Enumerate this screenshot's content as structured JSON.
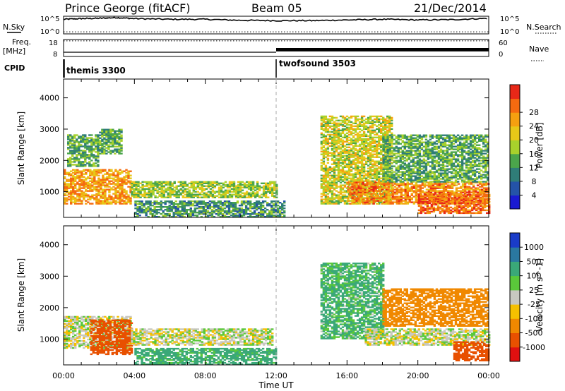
{
  "header": {
    "station": "Prince George (fitACF)",
    "beam": "Beam 05",
    "date": "21/Dec/2014"
  },
  "panel_labels": {
    "nsky": "N.Sky",
    "nsearch": "N.Search",
    "freq_line1": "Freq.",
    "freq_line2": "[MHz]",
    "nave": "Nave",
    "cpid": "CPID"
  },
  "noise_axis": {
    "left_top": "10^5",
    "left_bottom": "10^0",
    "right_top": "10^5",
    "right_bottom": "10^0"
  },
  "freq_axis": {
    "left_top": "18",
    "left_bottom": "8",
    "right_top": "60",
    "right_bottom": "0"
  },
  "cpid": [
    {
      "label": "themis 3300",
      "start": 0
    },
    {
      "label": "twofsound 3503",
      "start": 12
    }
  ],
  "x_axis": {
    "label": "Time UT",
    "range_hours": [
      0,
      24
    ],
    "ticks": [
      "00:00",
      "04:00",
      "08:00",
      "12:00",
      "16:00",
      "20:00",
      "00:00"
    ]
  },
  "y_axis": {
    "label": "Slant Range [km]",
    "range_km": [
      180,
      4600
    ],
    "ticks": [
      "1000",
      "2000",
      "3000",
      "4000"
    ]
  },
  "power_colorbar": {
    "label": "Power [dB]",
    "ticks": [
      "4",
      "8",
      "12",
      "16",
      "20",
      "24",
      "28"
    ],
    "colors": [
      "#1a1ad2",
      "#2453a8",
      "#2f7d78",
      "#4ba54b",
      "#a8d12c",
      "#e8c818",
      "#f5a010",
      "#f56a10",
      "#e82818"
    ]
  },
  "velocity_colorbar": {
    "label": "Velocity [m s^-1]",
    "ticks": [
      "1000",
      "500",
      "100",
      "25",
      "-25",
      "-100",
      "-500",
      "-1000"
    ],
    "colors": [
      "#1a3cc8",
      "#2a78a0",
      "#3aa878",
      "#5ac83a",
      "#c8c8c0",
      "#f5c000",
      "#f08800",
      "#e85000",
      "#e01010"
    ]
  },
  "chart_data": {
    "type": "heatmap",
    "title": "Prince George (fitACF)  Beam 05  21/Dec/2014",
    "xlabel": "Time UT",
    "ylabel": "Slant Range [km]",
    "xlim_hours": [
      0,
      24
    ],
    "ylim_km": [
      180,
      4600
    ],
    "noise_log10_sky": [
      [
        0,
        4.3
      ],
      [
        1,
        4.5
      ],
      [
        2,
        4.6
      ],
      [
        3,
        4.8
      ],
      [
        4,
        4.5
      ],
      [
        6,
        4.3
      ],
      [
        8,
        4.3
      ],
      [
        10,
        4.0
      ],
      [
        12,
        3.9
      ],
      [
        14,
        3.9
      ],
      [
        16,
        4.1
      ],
      [
        18,
        4.3
      ],
      [
        20,
        4.1
      ],
      [
        22,
        4.2
      ],
      [
        24,
        4.6
      ]
    ],
    "noise_log10_search_level": 0.6,
    "frequency_MHz": [
      [
        0,
        10.5
      ],
      [
        12,
        10.5
      ],
      [
        12,
        12.0
      ],
      [
        24,
        12.0
      ]
    ],
    "nave": [
      [
        0,
        0
      ],
      [
        12,
        0
      ],
      [
        12,
        40
      ],
      [
        24,
        40
      ]
    ],
    "power_regions_dB": [
      {
        "t": [
          0.0,
          3.8
        ],
        "r": [
          600,
          1700
        ],
        "p": 24
      },
      {
        "t": [
          0.2,
          2.0
        ],
        "r": [
          1800,
          2800
        ],
        "p": 12
      },
      {
        "t": [
          2.0,
          3.3
        ],
        "r": [
          2200,
          3000
        ],
        "p": 12
      },
      {
        "t": [
          3.8,
          12.0
        ],
        "r": [
          800,
          1300
        ],
        "p": 16
      },
      {
        "t": [
          4.0,
          12.5
        ],
        "r": [
          180,
          700
        ],
        "p": 10
      },
      {
        "t": [
          14.5,
          18.5
        ],
        "r": [
          600,
          3400
        ],
        "p": 18
      },
      {
        "t": [
          16.0,
          24.0
        ],
        "r": [
          600,
          1300
        ],
        "p": 26
      },
      {
        "t": [
          18.0,
          24.0
        ],
        "r": [
          1300,
          2800
        ],
        "p": 12
      },
      {
        "t": [
          20.0,
          24.0
        ],
        "r": [
          300,
          900
        ],
        "p": 28
      }
    ],
    "velocity_regions_ms": [
      {
        "t": [
          0.0,
          3.8
        ],
        "r": [
          700,
          1700
        ],
        "v": 0
      },
      {
        "t": [
          1.5,
          3.8
        ],
        "r": [
          500,
          1600
        ],
        "v": -400
      },
      {
        "t": [
          3.8,
          11.8
        ],
        "r": [
          800,
          1300
        ],
        "v": 0
      },
      {
        "t": [
          4.0,
          12.0
        ],
        "r": [
          180,
          700
        ],
        "v": 100
      },
      {
        "t": [
          14.5,
          18.0
        ],
        "r": [
          1000,
          3400
        ],
        "v": 80
      },
      {
        "t": [
          17.0,
          24.0
        ],
        "r": [
          800,
          1300
        ],
        "v": 0
      },
      {
        "t": [
          18.0,
          24.0
        ],
        "r": [
          1400,
          2600
        ],
        "v": -200
      },
      {
        "t": [
          22.0,
          24.0
        ],
        "r": [
          300,
          900
        ],
        "v": -500
      }
    ]
  }
}
